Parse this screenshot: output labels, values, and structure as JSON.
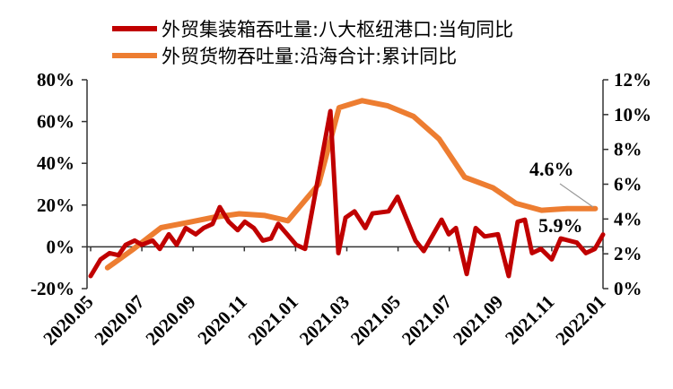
{
  "chart_data": {
    "type": "line",
    "title": "",
    "xlabel": "",
    "x_unit": "months since 2020.05",
    "x_ticks": [
      "2020.05",
      "2020.07",
      "2020.09",
      "2020.11",
      "2021.01",
      "2021.03",
      "2021.05",
      "2021.07",
      "2021.09",
      "2021.11",
      "2022.01"
    ],
    "xlim": [
      0,
      20
    ],
    "y_left": {
      "ylim": [
        -20,
        80
      ],
      "ticks": [
        "-20%",
        "0%",
        "20%",
        "40%",
        "60%",
        "80%"
      ],
      "values": [
        -20,
        0,
        20,
        40,
        60,
        80
      ]
    },
    "y_right": {
      "ylim": [
        0,
        12
      ],
      "ticks": [
        "0%",
        "2%",
        "4%",
        "6%",
        "8%",
        "10%",
        "12%"
      ],
      "values": [
        0,
        2,
        4,
        6,
        8,
        10,
        12
      ]
    },
    "legend_placement": "top",
    "series": [
      {
        "name": "外贸集装箱吞吐量:八大枢纽港口:当旬同比",
        "axis": "left",
        "color": "#C00000",
        "x": [
          0,
          0.39,
          0.74,
          1.09,
          1.37,
          1.72,
          2.0,
          2.42,
          2.7,
          3.05,
          3.36,
          3.71,
          4.1,
          4.41,
          4.76,
          5.04,
          5.39,
          5.74,
          6.02,
          6.37,
          6.72,
          7.04,
          7.32,
          7.67,
          8.02,
          8.37,
          9.36,
          9.67,
          9.95,
          10.3,
          10.72,
          11.0,
          11.63,
          11.98,
          12.68,
          13.0,
          13.7,
          13.98,
          14.26,
          14.68,
          15.03,
          15.38,
          15.9,
          16.32,
          16.67,
          16.95,
          17.23,
          17.58,
          18.0,
          18.35,
          18.98,
          19.33,
          19.68,
          20.0
        ],
        "values": [
          -14,
          -6,
          -3,
          -4,
          1,
          3,
          1,
          3,
          -1,
          6,
          1,
          9,
          6,
          9,
          11,
          19,
          12,
          8,
          12,
          9,
          3,
          4,
          11,
          6,
          1,
          -1,
          65,
          -3,
          14,
          17,
          9,
          16,
          17,
          24,
          3,
          -2,
          13,
          6,
          9,
          -13,
          9,
          5,
          6,
          -14,
          12,
          13,
          -3,
          -1,
          -6,
          4,
          2,
          -3,
          -1,
          5.9
        ]
      },
      {
        "name": "外贸货物吞吐量:沿海合计:累计同比",
        "axis": "right",
        "color": "#ED7D31",
        "x": [
          0.66,
          1.7,
          2.75,
          3.8,
          4.8,
          5.8,
          6.8,
          7.7,
          8.9,
          9.7,
          10.6,
          11.6,
          12.6,
          13.6,
          14.6,
          15.7,
          16.6,
          17.6,
          18.6,
          19.7
        ],
        "values": [
          1.2,
          2.3,
          3.5,
          3.8,
          4.1,
          4.3,
          4.2,
          3.9,
          6.0,
          10.4,
          10.8,
          10.5,
          9.9,
          8.6,
          6.4,
          5.8,
          4.9,
          4.5,
          4.6,
          4.6
        ]
      }
    ],
    "annotations": [
      {
        "text": "4.6%",
        "series": 1
      },
      {
        "text": "5.9%",
        "series": 0
      }
    ]
  }
}
